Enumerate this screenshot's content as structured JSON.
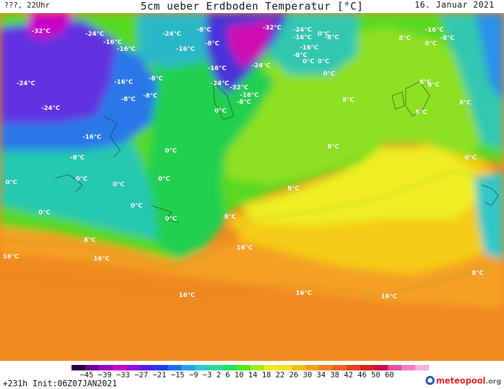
{
  "header": {
    "left": "???, 22Uhr",
    "title": "5cm ueber Erdboden Temperatur [°C]",
    "date": "16. Januar 2021"
  },
  "footer": {
    "run_info": "+231h  Init:06Z07JAN2021",
    "logo_main": "meteo",
    "logo_accent": "pool",
    "logo_suffix": ".org",
    "colorbar_ticks": "−45 −39 −33 −27 −21 −15  −9  −3   2   6  10  14  18  22  26  30  34  38  42  46  50  60"
  },
  "legend": {
    "colors": [
      "#2b0040",
      "#6a0090",
      "#a000c8",
      "#c800d0",
      "#9010e0",
      "#5020e8",
      "#2040f0",
      "#2070f0",
      "#2aa0e8",
      "#30c8c8",
      "#30d8a0",
      "#20e060",
      "#50e820",
      "#a8e820",
      "#e8f020",
      "#f0e020",
      "#f0c020",
      "#f0a020",
      "#f08020",
      "#f06020",
      "#e84020",
      "#d82020",
      "#c81040",
      "#e050a0",
      "#f080c0",
      "#f8b0e0"
    ]
  },
  "labels": [
    {
      "text": "-32°C"
    },
    {
      "text": "-24°C"
    },
    {
      "text": "-16°C"
    },
    {
      "text": "-24°C"
    },
    {
      "text": "-16°C"
    },
    {
      "text": "-8°C"
    },
    {
      "text": "-16°C"
    },
    {
      "text": "-8°C"
    },
    {
      "text": "-32°C"
    },
    {
      "text": "-24°C"
    },
    {
      "text": "-16°C"
    },
    {
      "text": "-16°C"
    },
    {
      "text": "-8°C"
    },
    {
      "text": "0°C"
    },
    {
      "text": "-8°C"
    },
    {
      "text": "0°C"
    },
    {
      "text": "-8°C"
    },
    {
      "text": "-16°C"
    },
    {
      "text": "8°C"
    },
    {
      "text": "0°C"
    },
    {
      "text": "-24°C"
    },
    {
      "text": "-16°C"
    },
    {
      "text": "-24°C"
    },
    {
      "text": "-16°C"
    },
    {
      "text": "-8°C"
    },
    {
      "text": "-8°C"
    },
    {
      "text": "-8°C"
    },
    {
      "text": "-24°C"
    },
    {
      "text": "-32°C"
    },
    {
      "text": "-16°C"
    },
    {
      "text": "-8°C"
    },
    {
      "text": "0°C"
    },
    {
      "text": "-24°C"
    },
    {
      "text": "0°C"
    },
    {
      "text": "0°C"
    },
    {
      "text": "8°C"
    },
    {
      "text": "-16°C"
    },
    {
      "text": "-8°C"
    },
    {
      "text": "8°C"
    },
    {
      "text": "8°C"
    },
    {
      "text": "0°C"
    },
    {
      "text": "8°C"
    },
    {
      "text": "0°C"
    },
    {
      "text": "0°C"
    },
    {
      "text": "0°C"
    },
    {
      "text": "0°C"
    },
    {
      "text": "8°C"
    },
    {
      "text": "0°C"
    },
    {
      "text": "8°C"
    },
    {
      "text": "0°C"
    },
    {
      "text": "8°C"
    },
    {
      "text": "16°C"
    },
    {
      "text": "8°C"
    },
    {
      "text": "16°C"
    },
    {
      "text": "0°C"
    },
    {
      "text": "8°C"
    },
    {
      "text": "16°C"
    },
    {
      "text": "16°C"
    },
    {
      "text": "16°C"
    },
    {
      "text": "16°C"
    },
    {
      "text": "8°C"
    },
    {
      "text": "0°C"
    }
  ]
}
